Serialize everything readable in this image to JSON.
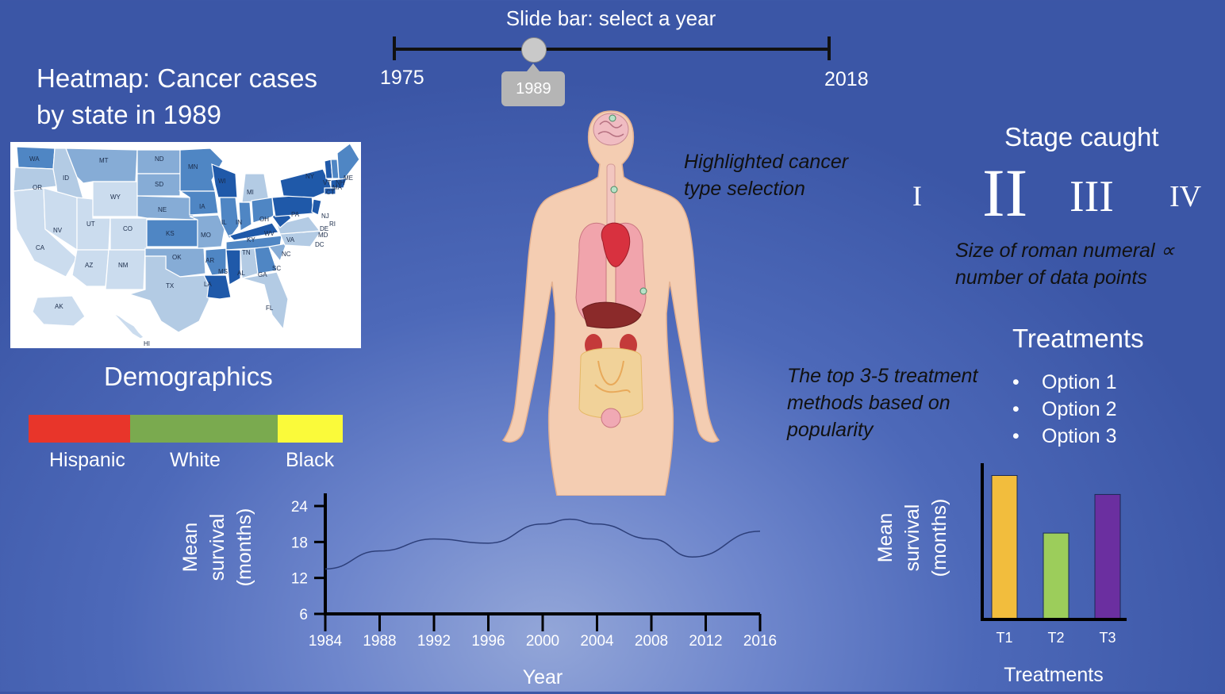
{
  "slider": {
    "title": "Slide bar: select a year",
    "min_label": "1975",
    "max_label": "2018",
    "value_label": "1989",
    "position": 0.32
  },
  "heatmap": {
    "title": "Heatmap: Cancer cases by state in 1989",
    "state_labels": [
      "WA",
      "MT",
      "ND",
      "MN",
      "OR",
      "ID",
      "SD",
      "WI",
      "MI",
      "VT",
      "NH",
      "ME",
      "WY",
      "NE",
      "IA",
      "NY",
      "MA",
      "CT",
      "RI",
      "NV",
      "UT",
      "CO",
      "KS",
      "MO",
      "IL",
      "IN",
      "OH",
      "PA",
      "NJ",
      "DE",
      "MD",
      "DC",
      "CA",
      "AZ",
      "NM",
      "OK",
      "AR",
      "TN",
      "KY",
      "WV",
      "VA",
      "NC",
      "SC",
      "GA",
      "AL",
      "MS",
      "LA",
      "TX",
      "FL",
      "AK",
      "HI"
    ]
  },
  "demographics": {
    "title": "Demographics",
    "groups": [
      {
        "label": "Hispanic",
        "share": 0.32,
        "color": "#e8352a"
      },
      {
        "label": "White",
        "share": 0.47,
        "color": "#7aaa4f"
      },
      {
        "label": "Black",
        "share": 0.21,
        "color": "#fafa3a"
      }
    ]
  },
  "body": {
    "note": "Highlighted cancer type selection"
  },
  "stage": {
    "title": "Stage caught",
    "numerals": [
      "I",
      "II",
      "III",
      "IV"
    ],
    "note": "Size of roman numeral ∝ number of data points"
  },
  "treatments": {
    "title": "Treatments",
    "note": "The top 3-5 treatment methods based on popularity",
    "options": [
      "Option 1",
      "Option 2",
      "Option 3"
    ]
  },
  "survival_line": {
    "ylabel_lines": [
      "Mean",
      "survival",
      "(months)"
    ],
    "xlabel": "Year",
    "chart_data": {
      "type": "line",
      "x": [
        1984,
        1988,
        1992,
        1996,
        2000,
        2002,
        2004,
        2008,
        2011,
        2016
      ],
      "y": [
        13.5,
        16.5,
        18.5,
        17.8,
        21,
        21.8,
        21,
        18.5,
        15.5,
        19.8
      ],
      "xticks": [
        "1984",
        "1988",
        "1992",
        "1996",
        "2000",
        "2004",
        "2008",
        "2012",
        "2016"
      ],
      "yticks": [
        "24",
        "18",
        "12",
        "6"
      ],
      "xlim": [
        1984,
        2016
      ],
      "ylim": [
        6,
        24
      ],
      "color": "#2d3f7a"
    }
  },
  "treatment_bars": {
    "ylabel_lines": [
      "Mean",
      "survival",
      "(months)"
    ],
    "xlabel": "Treatments",
    "chart_data": {
      "type": "bar",
      "categories": [
        "T1",
        "T2",
        "T3"
      ],
      "values": [
        22,
        13.2,
        19.1
      ],
      "colors": [
        "#f2bd3d",
        "#9ccd5b",
        "#6b2fa0"
      ],
      "ylim": [
        0,
        24
      ]
    }
  }
}
